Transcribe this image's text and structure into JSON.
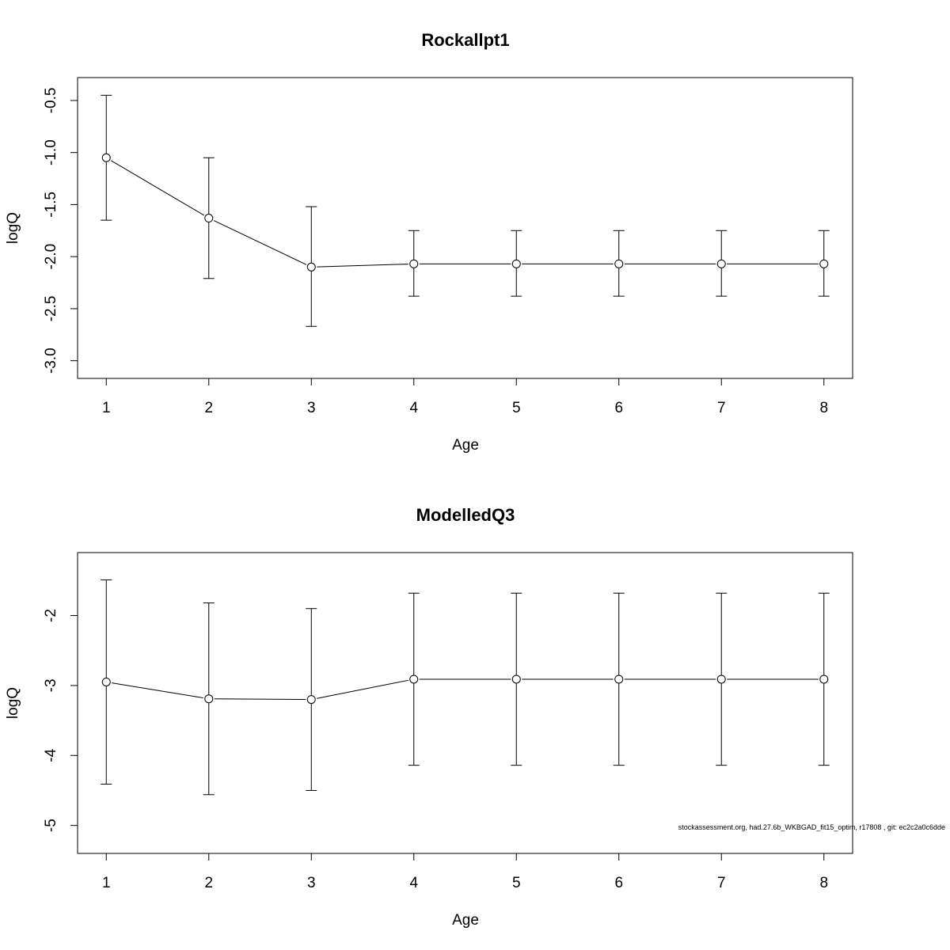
{
  "footnote": "stockassessment.org, had.27.6b_WKBGAD_fit15_optim, r17808 , git: ec2c2a0c6dde",
  "chart_data": [
    {
      "type": "line",
      "title": "Rockallpt1",
      "xlabel": "Age",
      "ylabel": "logQ",
      "x": [
        1,
        2,
        3,
        4,
        5,
        6,
        7,
        8
      ],
      "xticks": [
        "1",
        "2",
        "3",
        "4",
        "5",
        "6",
        "7",
        "8"
      ],
      "yticks": [
        "-3.0",
        "-2.5",
        "-2.0",
        "-1.5",
        "-1.0",
        "-0.5"
      ],
      "xlim": [
        0.72,
        8.28
      ],
      "ylim": [
        -3.17,
        -0.28
      ],
      "series": [
        {
          "values": [
            -1.05,
            -1.63,
            -2.1,
            -2.07,
            -2.07,
            -2.07,
            -2.07,
            -2.07
          ],
          "lower": [
            -1.65,
            -2.21,
            -2.67,
            -2.38,
            -2.38,
            -2.38,
            -2.38,
            -2.38
          ],
          "upper": [
            -0.45,
            -1.05,
            -1.52,
            -1.75,
            -1.75,
            -1.75,
            -1.75,
            -1.75
          ]
        }
      ],
      "grid": false,
      "legend": "none"
    },
    {
      "type": "line",
      "title": "ModelledQ3",
      "xlabel": "Age",
      "ylabel": "logQ",
      "x": [
        1,
        2,
        3,
        4,
        5,
        6,
        7,
        8
      ],
      "xticks": [
        "1",
        "2",
        "3",
        "4",
        "5",
        "6",
        "7",
        "8"
      ],
      "yticks": [
        "-5",
        "-4",
        "-3",
        "-2"
      ],
      "xlim": [
        0.72,
        8.28
      ],
      "ylim": [
        -5.4,
        -1.1
      ],
      "series": [
        {
          "values": [
            -2.95,
            -3.19,
            -3.2,
            -2.91,
            -2.91,
            -2.91,
            -2.91,
            -2.91
          ],
          "lower": [
            -4.41,
            -4.56,
            -4.5,
            -4.14,
            -4.14,
            -4.14,
            -4.14,
            -4.14
          ],
          "upper": [
            -1.49,
            -1.82,
            -1.9,
            -1.68,
            -1.68,
            -1.68,
            -1.68,
            -1.68
          ]
        }
      ],
      "grid": false,
      "legend": "none"
    }
  ]
}
